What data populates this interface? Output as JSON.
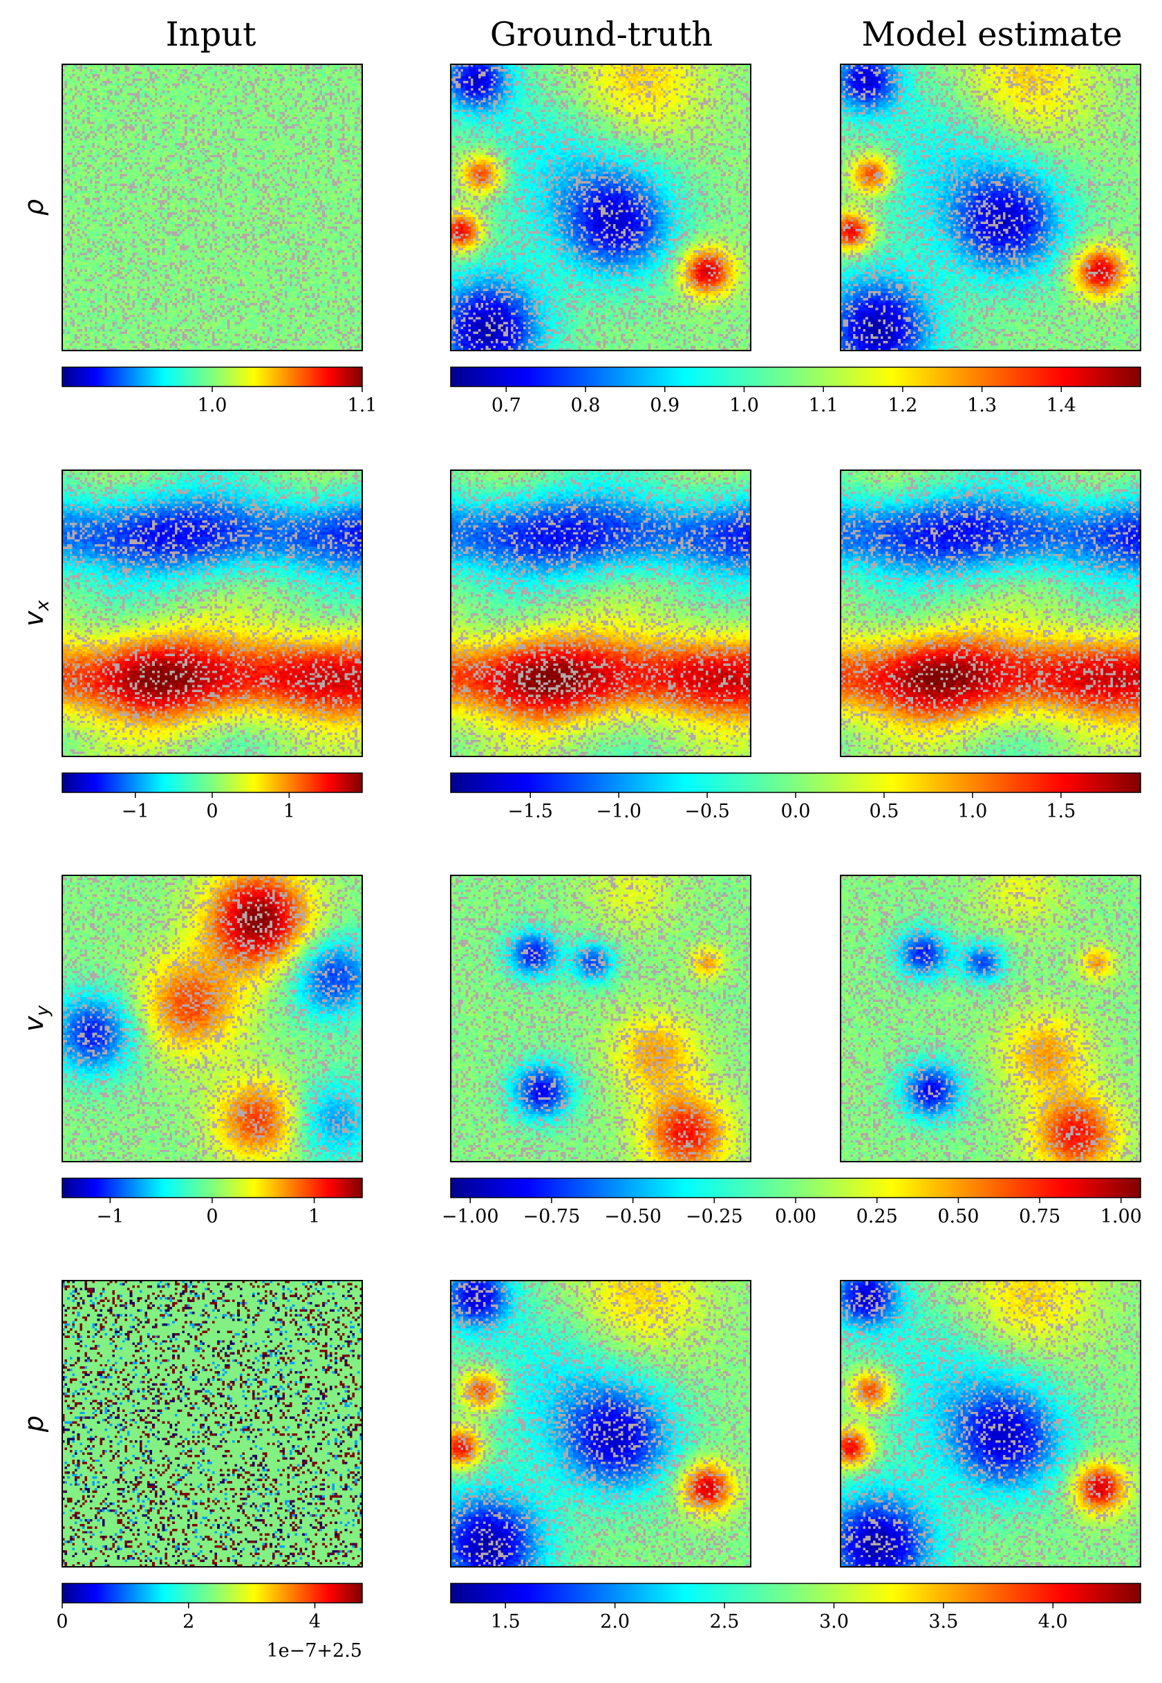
{
  "column_titles": {
    "input": "Input",
    "ground_truth": "Ground-truth",
    "model_estimate": "Model estimate"
  },
  "colormap": {
    "name": "jet",
    "masked_pixel_color": "#b4a8a8"
  },
  "chart_data": [
    {
      "type": "heatmap",
      "field": "rho",
      "row_label": "ρ",
      "input_colorbar": {
        "range": [
          0.9,
          1.1
        ],
        "ticks": [
          1.0,
          1.1
        ],
        "tick_labels": [
          "1.0",
          "1.1"
        ]
      },
      "shared_colorbar": {
        "range": [
          0.63,
          1.5
        ],
        "ticks": [
          0.7,
          0.8,
          0.9,
          1.0,
          1.1,
          1.2,
          1.3,
          1.4
        ],
        "tick_labels": [
          "0.7",
          "0.8",
          "0.9",
          "1.0",
          "1.1",
          "1.2",
          "1.3",
          "1.4"
        ]
      }
    },
    {
      "type": "heatmap",
      "field": "vx",
      "row_label": "vx",
      "input_colorbar": {
        "range": [
          -1.95,
          1.95
        ],
        "ticks": [
          -1,
          0,
          1
        ],
        "tick_labels": [
          "−1",
          "0",
          "1"
        ]
      },
      "shared_colorbar": {
        "range": [
          -1.95,
          1.95
        ],
        "ticks": [
          -1.5,
          -1.0,
          -0.5,
          0.0,
          0.5,
          1.0,
          1.5
        ],
        "tick_labels": [
          "−1.5",
          "−1.0",
          "−0.5",
          "0.0",
          "0.5",
          "1.0",
          "1.5"
        ]
      }
    },
    {
      "type": "heatmap",
      "field": "vy",
      "row_label": "vy",
      "input_colorbar": {
        "range": [
          -1.47,
          1.47
        ],
        "ticks": [
          -1,
          0,
          1
        ],
        "tick_labels": [
          "−1",
          "0",
          "1"
        ]
      },
      "shared_colorbar": {
        "range": [
          -1.06,
          1.06
        ],
        "ticks": [
          -1.0,
          -0.75,
          -0.5,
          -0.25,
          0.0,
          0.25,
          0.5,
          0.75,
          1.0
        ],
        "tick_labels": [
          "−1.00",
          "−0.75",
          "−0.50",
          "−0.25",
          "0.00",
          "0.25",
          "0.50",
          "0.75",
          "1.00"
        ]
      }
    },
    {
      "type": "heatmap",
      "field": "p",
      "row_label": "p",
      "input_colorbar": {
        "range": [
          0,
          4.75
        ],
        "ticks": [
          0,
          2,
          4
        ],
        "tick_labels": [
          "0",
          "2",
          "4"
        ],
        "offset_text": "1e−7+2.5"
      },
      "shared_colorbar": {
        "range": [
          1.25,
          4.4
        ],
        "ticks": [
          1.5,
          2.0,
          2.5,
          3.0,
          3.5,
          4.0
        ],
        "tick_labels": [
          "1.5",
          "2.0",
          "2.5",
          "3.0",
          "3.5",
          "4.0"
        ]
      }
    }
  ]
}
